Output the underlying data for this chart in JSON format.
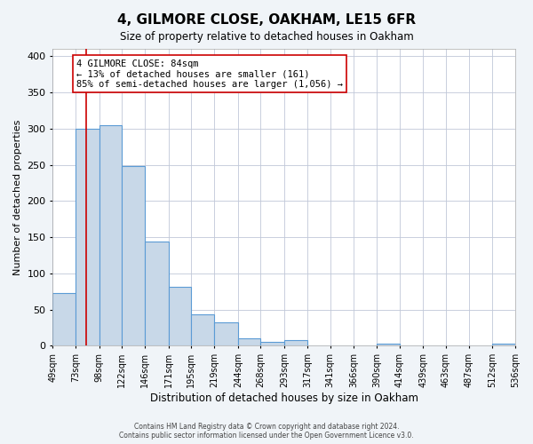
{
  "title": "4, GILMORE CLOSE, OAKHAM, LE15 6FR",
  "subtitle": "Size of property relative to detached houses in Oakham",
  "xlabel": "Distribution of detached houses by size in Oakham",
  "ylabel": "Number of detached properties",
  "bar_edges": [
    49,
    73,
    98,
    122,
    146,
    171,
    195,
    219,
    244,
    268,
    293,
    317,
    341,
    366,
    390,
    414,
    439,
    463,
    487,
    512,
    536
  ],
  "bar_heights": [
    73,
    300,
    305,
    248,
    144,
    82,
    44,
    32,
    10,
    6,
    8,
    0,
    0,
    0,
    3,
    0,
    0,
    0,
    0,
    3
  ],
  "tick_labels": [
    "49sqm",
    "73sqm",
    "98sqm",
    "122sqm",
    "146sqm",
    "171sqm",
    "195sqm",
    "219sqm",
    "244sqm",
    "268sqm",
    "293sqm",
    "317sqm",
    "341sqm",
    "366sqm",
    "390sqm",
    "414sqm",
    "439sqm",
    "463sqm",
    "487sqm",
    "512sqm",
    "536sqm"
  ],
  "bar_color": "#c8d8e8",
  "bar_edge_color": "#5b9bd5",
  "property_line_x": 84,
  "property_line_color": "#cc0000",
  "annotation_text": "4 GILMORE CLOSE: 84sqm\n← 13% of detached houses are smaller (161)\n85% of semi-detached houses are larger (1,056) →",
  "annotation_box_color": "#ffffff",
  "annotation_box_edge_color": "#cc0000",
  "ylim": [
    0,
    410
  ],
  "yticks": [
    0,
    50,
    100,
    150,
    200,
    250,
    300,
    350,
    400
  ],
  "footer_text": "Contains HM Land Registry data © Crown copyright and database right 2024.\nContains public sector information licensed under the Open Government Licence v3.0.",
  "background_color": "#f0f4f8",
  "plot_background_color": "#ffffff",
  "grid_color": "#c0c8d8"
}
